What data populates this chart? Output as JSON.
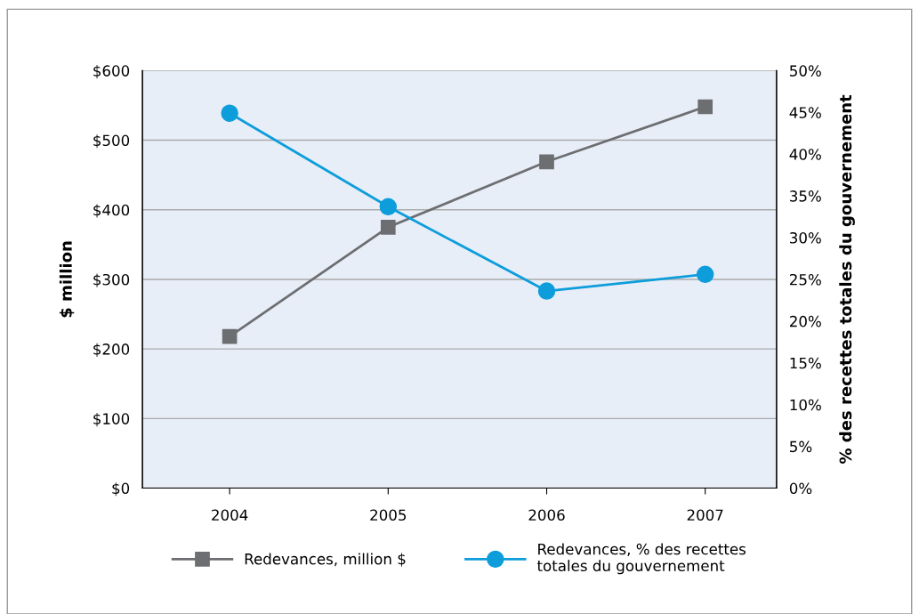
{
  "chart_data": {
    "type": "line",
    "categories": [
      "2004",
      "2005",
      "2006",
      "2007"
    ],
    "ylabel": "$ million",
    "y2label": "% des recettes totales du gouvernement",
    "series": [
      {
        "name": "Redevances, million $",
        "color": "#6d6e71",
        "marker": "square",
        "values": [
          218,
          375,
          469,
          548
        ]
      },
      {
        "name": "Redevances, % des recettes\ntotales du gouvernement",
        "color": "#0d9ddb",
        "marker": "circle",
        "axis": "y2",
        "values": [
          44.9,
          33.7,
          23.6,
          25.6
        ]
      }
    ],
    "ylim": [
      0,
      600
    ],
    "yticks": [
      {
        "value": 0,
        "label": "$0"
      },
      {
        "value": 100,
        "label": "$100"
      },
      {
        "value": 200,
        "label": "$200"
      },
      {
        "value": 300,
        "label": "$300"
      },
      {
        "value": 400,
        "label": "$400"
      },
      {
        "value": 500,
        "label": "$500"
      },
      {
        "value": 600,
        "label": "$600"
      }
    ],
    "y2lim": [
      0,
      50
    ],
    "y2ticks": [
      {
        "value": 0,
        "label": "0%"
      },
      {
        "value": 5,
        "label": "5%"
      },
      {
        "value": 10,
        "label": "10%"
      },
      {
        "value": 15,
        "label": "15%"
      },
      {
        "value": 20,
        "label": "20%"
      },
      {
        "value": 25,
        "label": "25%"
      },
      {
        "value": 30,
        "label": "30%"
      },
      {
        "value": 35,
        "label": "35%"
      },
      {
        "value": 40,
        "label": "40%"
      },
      {
        "value": 45,
        "label": "45%"
      },
      {
        "value": 50,
        "label": "50%"
      }
    ],
    "grid": "y",
    "legend": "bottom",
    "line_style": "solid"
  }
}
